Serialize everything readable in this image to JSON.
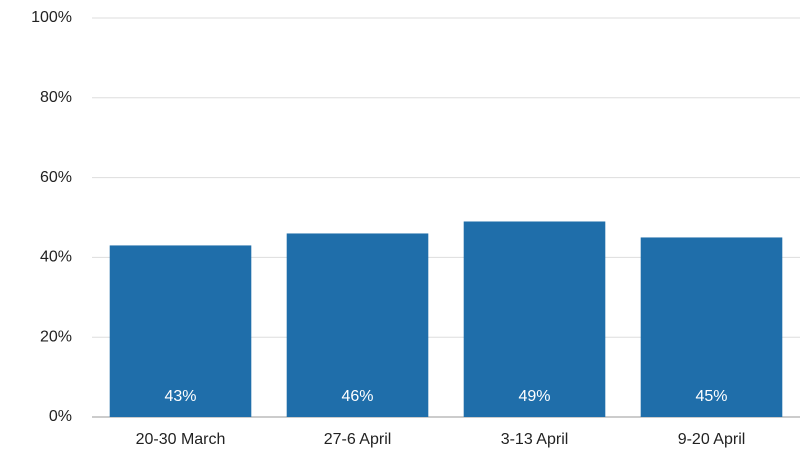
{
  "chart_data": {
    "type": "bar",
    "categories": [
      "20-30 March",
      "27-6 April",
      "3-13 April",
      "9-20 April"
    ],
    "values": [
      43,
      46,
      49,
      45
    ],
    "value_labels": [
      "43%",
      "46%",
      "49%",
      "45%"
    ],
    "color": "#1f6eaa",
    "ylim": [
      0,
      100
    ],
    "yticks": [
      {
        "value": 0,
        "label": "0%"
      },
      {
        "value": 20,
        "label": "20%"
      },
      {
        "value": 40,
        "label": "40%"
      },
      {
        "value": 60,
        "label": "60%"
      },
      {
        "value": 80,
        "label": "80%"
      },
      {
        "value": 100,
        "label": "100%"
      }
    ],
    "grid": true
  }
}
